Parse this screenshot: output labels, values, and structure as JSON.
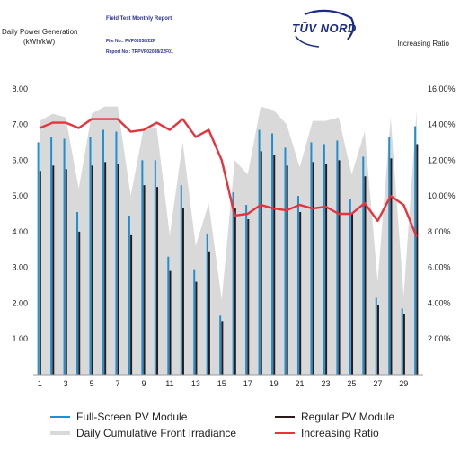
{
  "header": {
    "report_title": "Field Test Monthly Report",
    "file_no": "File No.: PVP02038/22P",
    "report_no": "Report No.: TRPVP02038/22F01",
    "logo_text": "TÜV NORD"
  },
  "chart_data": {
    "type": "bar",
    "ylabel": "Daily Power Generation (kWh/kW)",
    "ylabel_line1": "Daily Power Generation",
    "ylabel_line2": "(kWh/kW)",
    "y2label": "Increasing Ratio",
    "ylim": [
      0,
      9
    ],
    "y_ticks": [
      "1.00",
      "2.00",
      "3.00",
      "4.00",
      "5.00",
      "6.00",
      "7.00",
      "8.00"
    ],
    "y2lim": [
      0,
      18
    ],
    "y2_ticks": [
      "2.00%",
      "4.00%",
      "6.00%",
      "8.00%",
      "10.00%",
      "12.00%",
      "14.00%",
      "16.00%"
    ],
    "x": [
      1,
      2,
      3,
      4,
      5,
      6,
      7,
      8,
      9,
      10,
      11,
      12,
      13,
      14,
      15,
      16,
      17,
      18,
      19,
      20,
      21,
      22,
      23,
      24,
      25,
      26,
      27,
      28,
      29,
      30
    ],
    "x_tick_labels": [
      "1",
      "3",
      "5",
      "7",
      "9",
      "11",
      "13",
      "15",
      "17",
      "19",
      "21",
      "23",
      "25",
      "27",
      "29"
    ],
    "series": [
      {
        "name": "Full-Screen PV Module",
        "color": "#1f8fd0",
        "values": [
          6.5,
          6.65,
          6.6,
          4.55,
          6.65,
          6.85,
          6.8,
          4.45,
          6.0,
          6.0,
          3.3,
          5.3,
          2.95,
          3.95,
          1.65,
          5.1,
          4.75,
          6.85,
          6.75,
          6.35,
          5.0,
          6.5,
          6.45,
          6.55,
          4.9,
          6.1,
          2.15,
          6.65,
          1.85,
          6.95
        ]
      },
      {
        "name": "Regular PV Module",
        "color": "#2a1a1a",
        "values": [
          5.7,
          5.85,
          5.75,
          4.0,
          5.85,
          5.95,
          5.9,
          3.9,
          5.3,
          5.25,
          2.9,
          4.65,
          2.6,
          3.45,
          1.5,
          4.65,
          4.35,
          6.25,
          6.15,
          5.85,
          4.55,
          5.95,
          5.9,
          6.0,
          4.5,
          5.55,
          1.95,
          6.05,
          1.7,
          6.45
        ]
      },
      {
        "name": "Daily Cumulative Front Irradiance",
        "color": "#d9d9d9",
        "values": [
          7.1,
          7.3,
          7.2,
          5.2,
          7.3,
          7.5,
          7.5,
          5.0,
          6.9,
          6.9,
          3.9,
          6.5,
          3.6,
          4.8,
          2.1,
          6.0,
          5.6,
          7.5,
          7.4,
          7.0,
          5.8,
          7.1,
          7.1,
          7.2,
          5.6,
          6.8,
          2.6,
          7.2,
          2.2,
          7.4
        ]
      },
      {
        "name": "Increasing Ratio",
        "color": "#e8323c",
        "values": [
          13.8,
          14.1,
          14.1,
          13.8,
          14.3,
          14.3,
          14.3,
          13.6,
          13.7,
          14.1,
          13.7,
          14.3,
          13.3,
          13.7,
          12.0,
          8.9,
          9.0,
          9.5,
          9.3,
          9.2,
          9.5,
          9.3,
          9.4,
          9.0,
          9.0,
          9.6,
          8.6,
          10.0,
          9.5,
          7.7
        ]
      }
    ],
    "legend_placement": "bottom",
    "grid": false
  }
}
